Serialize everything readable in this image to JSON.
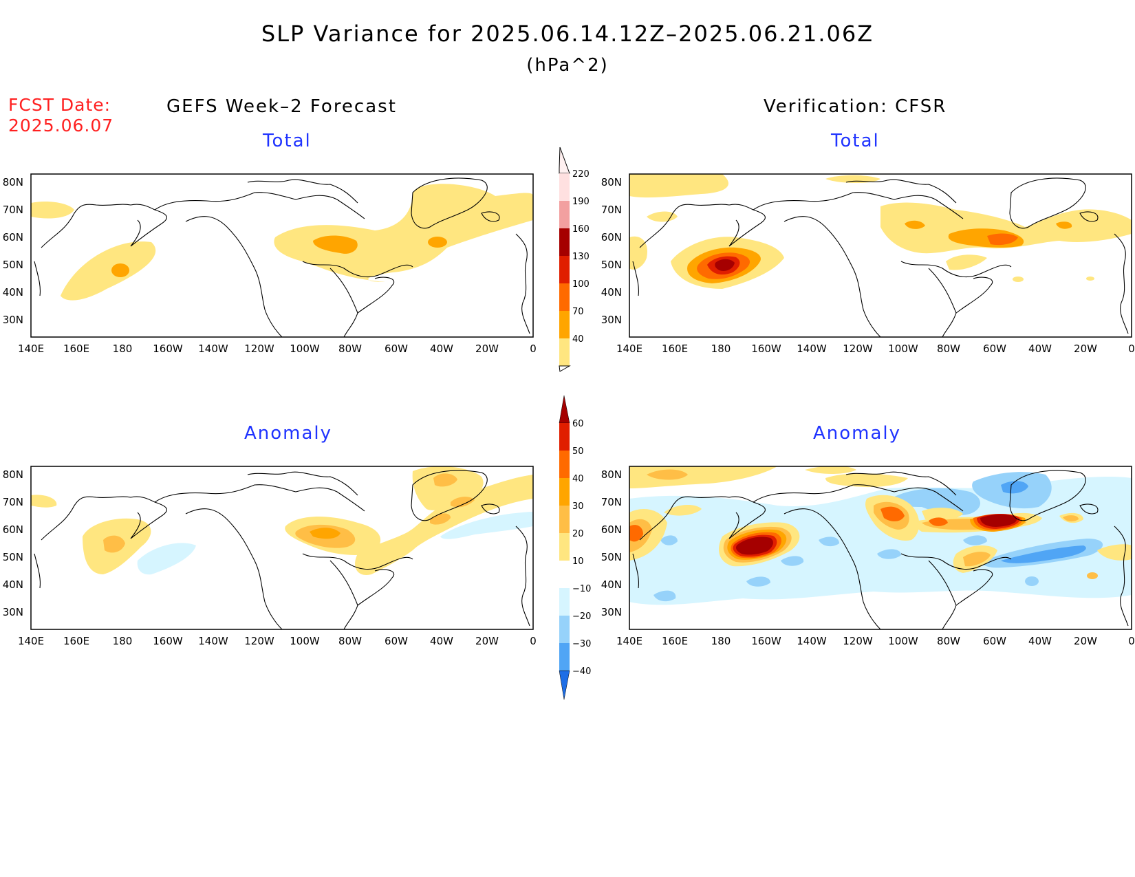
{
  "title": "SLP Variance for 2025.06.14.12Z–2025.06.21.06Z",
  "units": "(hPa^2)",
  "fcst_date_label": "FCST Date:",
  "fcst_date_value": "2025.06.07",
  "left_header": "GEFS Week–2 Forecast",
  "right_header": "Verification: CFSR",
  "panels": {
    "gefs_total": {
      "label": "Total"
    },
    "cfsr_total": {
      "label": "Total"
    },
    "gefs_anomaly": {
      "label": "Anomaly"
    },
    "cfsr_anomaly": {
      "label": "Anomaly"
    }
  },
  "axes": {
    "lon_ticks": [
      "140E",
      "160E",
      "180",
      "160W",
      "140W",
      "120W",
      "100W",
      "80W",
      "60W",
      "40W",
      "20W",
      "0"
    ],
    "lat_ticks": [
      "30N",
      "40N",
      "50N",
      "60N",
      "70N",
      "80N"
    ],
    "lon_range": [
      140,
      360
    ],
    "lat_range": [
      25,
      85
    ]
  },
  "total_colorbar": {
    "levels": [
      "40",
      "70",
      "100",
      "130",
      "160",
      "190",
      "220"
    ],
    "colors": [
      "#ffe680",
      "#ffa500",
      "#ff6a00",
      "#e01e00",
      "#a50000",
      "#f2a0a0",
      "#ffe0e0"
    ],
    "triangle_top_color": "#fff0f0"
  },
  "anomaly_colorbar": {
    "levels": [
      "60",
      "50",
      "40",
      "30",
      "20",
      "10",
      "−10",
      "−20",
      "−30",
      "−40"
    ],
    "colors_top_to_bottom": [
      "#a50000",
      "#e01e00",
      "#ff6a00",
      "#ffa500",
      "#ffbe46",
      "#ffe680",
      "#ffffff",
      "#d6f5ff",
      "#96d2fa",
      "#50a5f5",
      "#1e6ee6",
      "#0a50c8"
    ]
  },
  "palette": {
    "total": [
      "#ffe680",
      "#ffa500",
      "#ff6a00",
      "#e01e00",
      "#a50000"
    ],
    "anomaly_pos": [
      "#ffe680",
      "#ffbe46",
      "#ffa500",
      "#ff6a00",
      "#e01e00",
      "#a50000"
    ],
    "anomaly_neg": [
      "#d6f5ff",
      "#96d2fa",
      "#50a5f5"
    ]
  }
}
